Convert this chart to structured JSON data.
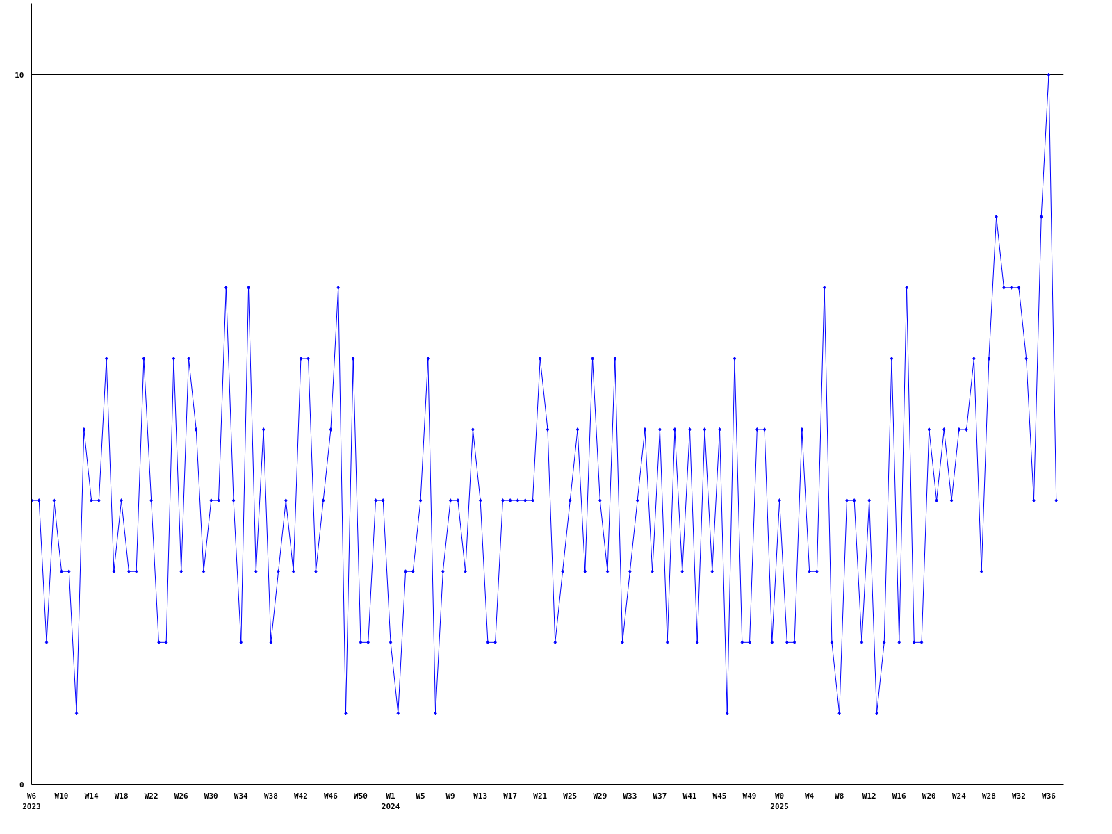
{
  "chart_data": {
    "type": "line",
    "categories": [
      "W6\n2023",
      null,
      null,
      null,
      "W10",
      null,
      null,
      null,
      "W14",
      null,
      null,
      null,
      "W18",
      null,
      null,
      null,
      "W22",
      null,
      null,
      null,
      "W26",
      null,
      null,
      null,
      "W30",
      null,
      null,
      null,
      "W34",
      null,
      null,
      null,
      "W38",
      null,
      null,
      null,
      "W42",
      null,
      null,
      null,
      "W46",
      null,
      null,
      null,
      "W50",
      null,
      null,
      null,
      "W1\n2024",
      null,
      null,
      null,
      "W5",
      null,
      null,
      null,
      "W9",
      null,
      null,
      null,
      "W13",
      null,
      null,
      null,
      "W17",
      null,
      null,
      null,
      "W21",
      null,
      null,
      null,
      "W25",
      null,
      null,
      null,
      "W29",
      null,
      null,
      null,
      "W33",
      null,
      null,
      null,
      "W37",
      null,
      null,
      null,
      "W41",
      null,
      null,
      null,
      "W45",
      null,
      null,
      null,
      "W49",
      null,
      null,
      null,
      "W0\n2025",
      null,
      null,
      null,
      "W4",
      null,
      null,
      null,
      "W8",
      null,
      null,
      null,
      "W12",
      null,
      null,
      null,
      "W16",
      null,
      null,
      null,
      "W20",
      null,
      null,
      null,
      "W24",
      null,
      null,
      null,
      "W28",
      null,
      null,
      null,
      "W32",
      null,
      null,
      null,
      "W36",
      null
    ],
    "series": [
      {
        "color": "#0000ff",
        "values": [
          4,
          4,
          2,
          4,
          3,
          3,
          1,
          5,
          4,
          4,
          6,
          3,
          4,
          3,
          3,
          6,
          4,
          2,
          2,
          6,
          3,
          6,
          5,
          3,
          4,
          4,
          7,
          4,
          2,
          7,
          3,
          5,
          2,
          3,
          4,
          3,
          6,
          6,
          3,
          4,
          5,
          7,
          1,
          6,
          2,
          2,
          4,
          4,
          2,
          1,
          3,
          3,
          4,
          6,
          1,
          3,
          4,
          4,
          3,
          5,
          4,
          2,
          2,
          4,
          4,
          4,
          4,
          4,
          6,
          5,
          2,
          3,
          4,
          5,
          3,
          6,
          4,
          3,
          6,
          2,
          3,
          4,
          5,
          3,
          5,
          2,
          5,
          3,
          5,
          2,
          5,
          3,
          5,
          1,
          6,
          2,
          2,
          5,
          5,
          2,
          4,
          2,
          2,
          5,
          3,
          3,
          7,
          2,
          1,
          4,
          4,
          2,
          4,
          1,
          2,
          6,
          2,
          7,
          2,
          2,
          5,
          4,
          5,
          4,
          5,
          5,
          6,
          3,
          6,
          8,
          7,
          7,
          7,
          6,
          4,
          8,
          10,
          4
        ]
      }
    ],
    "ylim": [
      0,
      11
    ],
    "yticks": [
      0,
      10
    ],
    "grid": "y",
    "marker": "diamond",
    "line_style": "solid"
  }
}
